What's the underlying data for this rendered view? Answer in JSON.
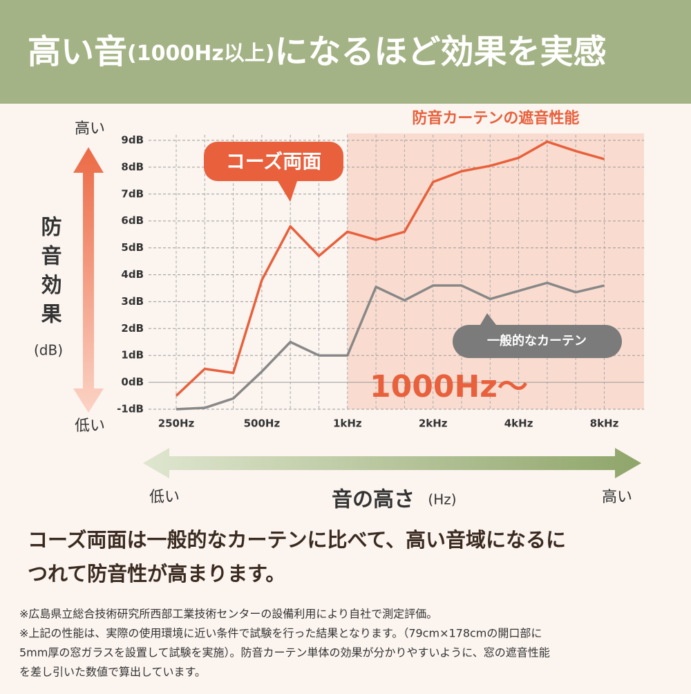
{
  "header": {
    "title_parts": [
      "高い音",
      "(1000Hz以上)",
      "になるほど効果を実感"
    ]
  },
  "chart_data": {
    "type": "line",
    "y_label": "防音効果",
    "y_unit": "(dB)",
    "y_label_top": "高い",
    "y_label_bottom": "低い",
    "x_label": "音の高さ",
    "x_unit": "(Hz)",
    "x_label_left": "低い",
    "x_label_right": "高い",
    "highlight": {
      "label": "防音カーテンの遮音性能",
      "text": "1000Hz〜",
      "start_category": 6,
      "color": "#f9dccf"
    },
    "categories": [
      "250Hz",
      null,
      null,
      "500Hz",
      null,
      null,
      "1kHz",
      null,
      null,
      "2kHz",
      null,
      null,
      "4kHz",
      null,
      null,
      "8kHz"
    ],
    "series": [
      {
        "name": "コーズ両面",
        "color": "#e8603c",
        "values": [
          -0.5,
          0.5,
          0.35,
          3.8,
          5.8,
          4.7,
          5.6,
          5.3,
          5.6,
          7.45,
          7.85,
          8.05,
          8.35,
          8.95,
          8.6,
          8.3
        ]
      },
      {
        "name": "一般的なカーテン",
        "color": "#888888",
        "values": [
          -1.0,
          -0.95,
          -0.6,
          0.4,
          1.5,
          1.0,
          1.0,
          3.55,
          3.05,
          3.6,
          3.6,
          3.1,
          3.4,
          3.7,
          3.35,
          3.6
        ]
      }
    ],
    "ylim": [
      -1,
      9
    ],
    "yticks": [
      {
        "value": -1,
        "label": "-1dB"
      },
      {
        "value": 0,
        "label": "0dB"
      },
      {
        "value": 1,
        "label": "1dB"
      },
      {
        "value": 2,
        "label": "2dB"
      },
      {
        "value": 3,
        "label": "3dB"
      },
      {
        "value": 4,
        "label": "4dB"
      },
      {
        "value": 5,
        "label": "5dB"
      },
      {
        "value": 6,
        "label": "6dB"
      },
      {
        "value": 7,
        "label": "7dB"
      },
      {
        "value": 8,
        "label": "8dB"
      },
      {
        "value": 9,
        "label": "9dB"
      }
    ],
    "grid": true
  },
  "body": {
    "lines": [
      "コーズ両面は一般的なカーテンに比べて、高い音域になるに",
      "つれて防音性が高まります。"
    ]
  },
  "notes": {
    "lines": [
      "※広島県立総合技術研究所西部工業技術センターの設備利用により自社で測定評価。",
      "※上記の性能は、実際の使用環境に近い条件で試験を行った結果となります。（79cm×178cmの開口部に",
      "5mm厚の窓ガラスを設置して試験を実施）。防音カーテン単体の効果が分かりやすいように、窓の遮音性能",
      "を差し引いた数値で算出しています。"
    ]
  }
}
